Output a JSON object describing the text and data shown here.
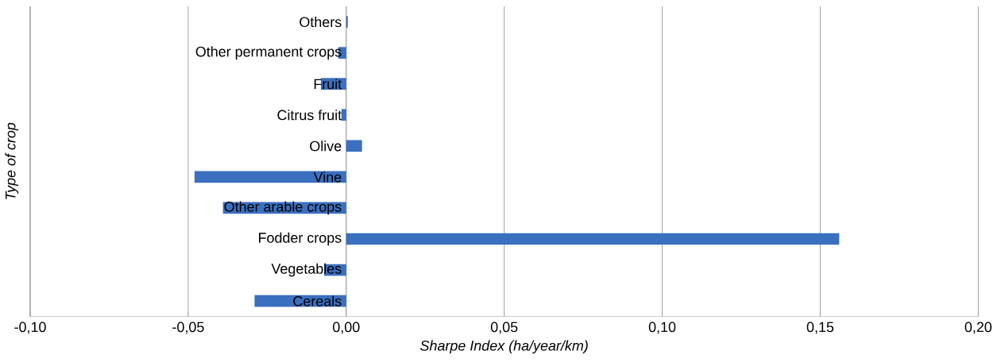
{
  "chart_data": {
    "type": "bar",
    "orientation": "horizontal",
    "xlabel": "Sharpe Index (ha/year/km)",
    "ylabel": "Type of crop",
    "categories": [
      "Others",
      "Other permanent crops",
      "Fruit",
      "Citrus fruit",
      "Olive",
      "Vine",
      "Other arable crops",
      "Fodder crops",
      "Vegetables",
      "Cereals"
    ],
    "values": [
      0.0005,
      -0.0025,
      -0.008,
      -0.0015,
      0.005,
      -0.048,
      -0.039,
      0.156,
      -0.007,
      -0.029
    ],
    "color": "#3b6fbf",
    "xlim": [
      -0.1,
      0.2
    ],
    "xticks": [
      {
        "value": -0.1,
        "label": "-0,10"
      },
      {
        "value": -0.05,
        "label": "-0,05"
      },
      {
        "value": 0,
        "label": "0,00"
      },
      {
        "value": 0.05,
        "label": "0,05"
      },
      {
        "value": 0.1,
        "label": "0,10"
      },
      {
        "value": 0.15,
        "label": "0,15"
      },
      {
        "value": 0.2,
        "label": "0,20"
      }
    ],
    "grid": "x"
  }
}
